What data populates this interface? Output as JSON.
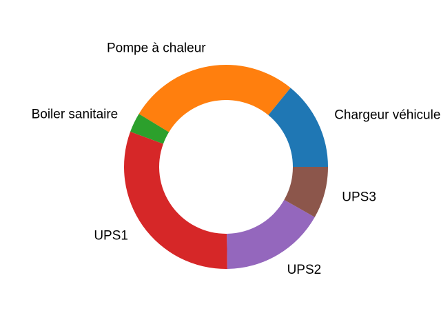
{
  "chart_data": {
    "type": "pie",
    "variant": "donut",
    "title": "",
    "categories": [
      "Chargeur véhicule",
      "Pompe à chaleur",
      "Boiler sanitaire",
      "UPS1",
      "UPS2",
      "UPS3"
    ],
    "values": [
      14.1,
      27.2,
      3.1,
      30.8,
      16.6,
      8.2
    ],
    "colors": [
      "#1f77b4",
      "#ff7f0e",
      "#2ca02c",
      "#d62728",
      "#9467bd",
      "#8c564b"
    ],
    "start_angle_deg": 0,
    "direction": "counterclockwise",
    "legend": "none"
  }
}
